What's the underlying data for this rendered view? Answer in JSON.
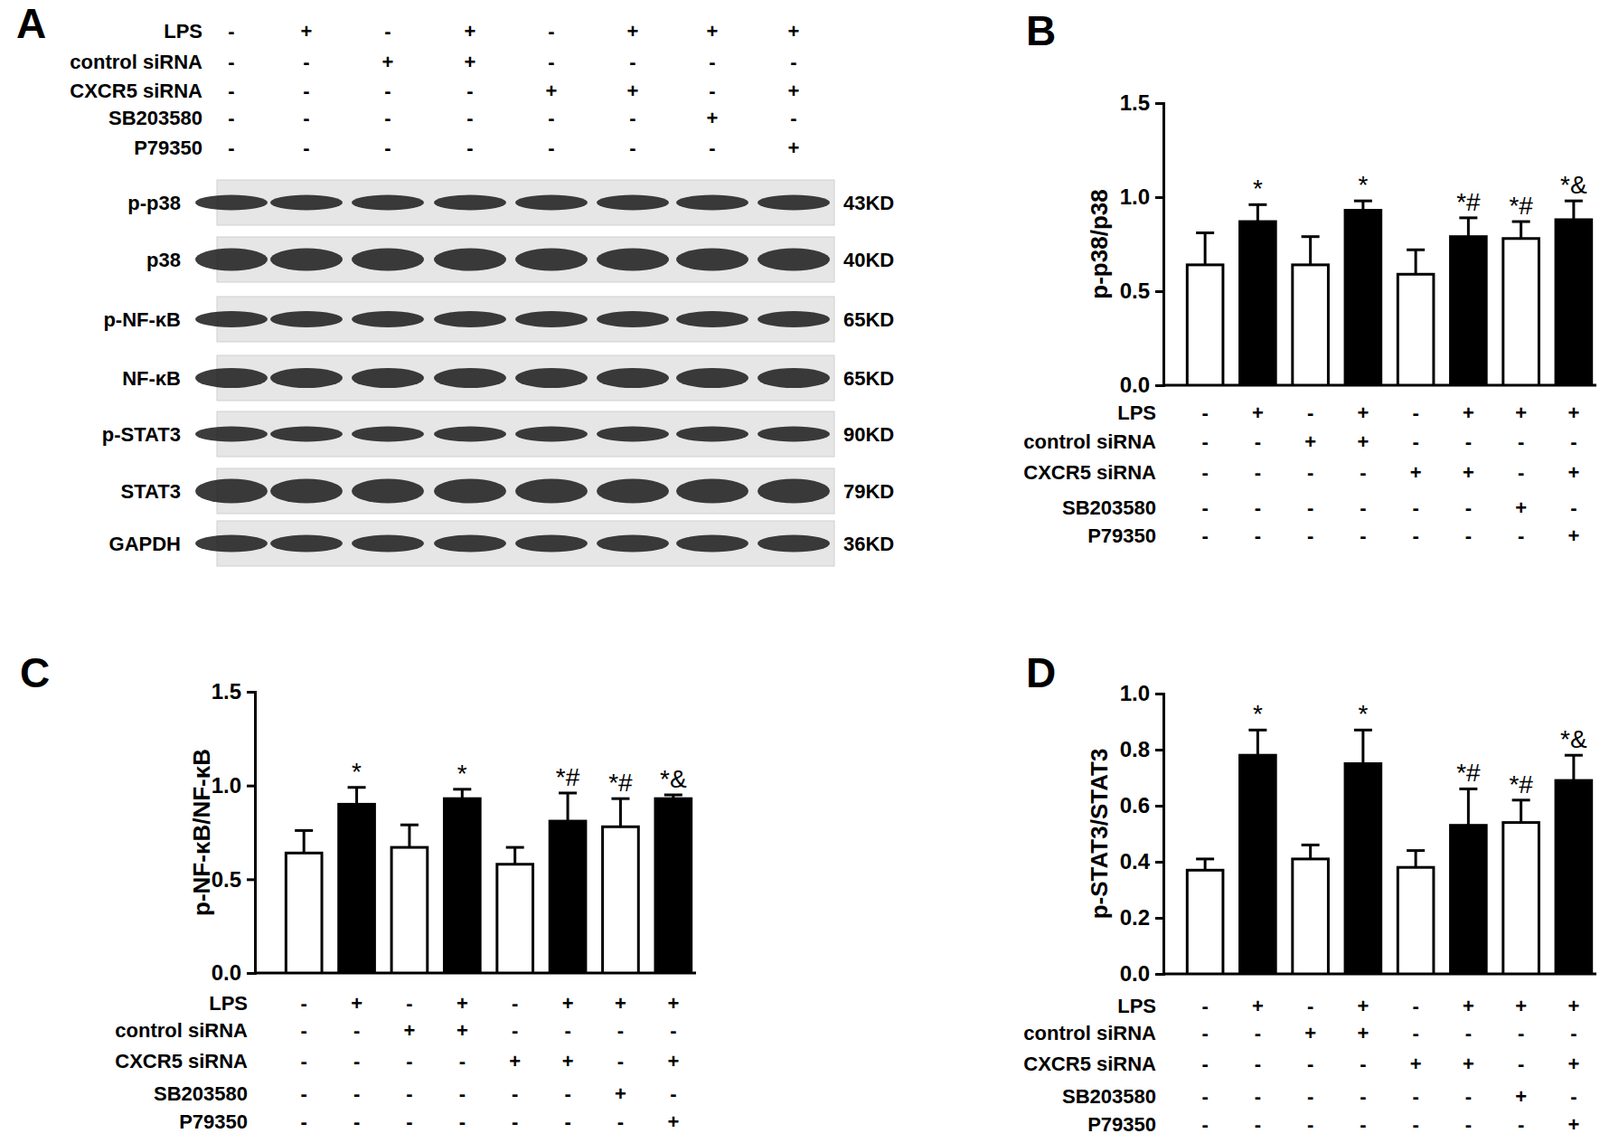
{
  "blot": {
    "title": "A",
    "treatments": [
      {
        "name": "LPS",
        "signs": [
          "-",
          "+",
          "-",
          "+",
          "-",
          "+",
          "+",
          "+"
        ]
      },
      {
        "name": "control siRNA",
        "signs": [
          "-",
          "-",
          "+",
          "+",
          "-",
          "-",
          "-",
          "-"
        ]
      },
      {
        "name": "CXCR5 siRNA",
        "signs": [
          "-",
          "-",
          "-",
          "-",
          "+",
          "+",
          "-",
          "+"
        ]
      },
      {
        "name": "SB203580",
        "signs": [
          "-",
          "-",
          "-",
          "-",
          "-",
          "-",
          "+",
          "-"
        ]
      },
      {
        "name": "P79350",
        "signs": [
          "-",
          "-",
          "-",
          "-",
          "-",
          "-",
          "-",
          "+"
        ]
      }
    ],
    "rows": [
      {
        "label": "p-p38",
        "size": "43KD"
      },
      {
        "label": "p38",
        "size": "40KD"
      },
      {
        "label": "p-NF-κB",
        "size": "65KD"
      },
      {
        "label": "NF-κB",
        "size": "65KD"
      },
      {
        "label": "p-STAT3",
        "size": "90KD"
      },
      {
        "label": "STAT3",
        "size": "79KD"
      },
      {
        "label": "GAPDH",
        "size": "36KD"
      }
    ]
  },
  "chart_data": [
    {
      "type": "bar",
      "title": "B",
      "y_label": "p-p38/p38",
      "treatments": [
        {
          "name": "LPS",
          "signs": [
            "-",
            "+",
            "-",
            "+",
            "-",
            "+",
            "+",
            "+"
          ]
        },
        {
          "name": "control siRNA",
          "signs": [
            "-",
            "-",
            "+",
            "+",
            "-",
            "-",
            "-",
            "-"
          ]
        },
        {
          "name": "CXCR5 siRNA",
          "signs": [
            "-",
            "-",
            "-",
            "-",
            "+",
            "+",
            "-",
            "+"
          ]
        },
        {
          "name": "SB203580",
          "signs": [
            "-",
            "-",
            "-",
            "-",
            "-",
            "-",
            "+",
            "-"
          ]
        },
        {
          "name": "P79350",
          "signs": [
            "-",
            "-",
            "-",
            "-",
            "-",
            "-",
            "-",
            "+"
          ]
        }
      ],
      "values": [
        0.64,
        0.87,
        0.64,
        0.93,
        0.59,
        0.79,
        0.78,
        0.88
      ],
      "errors": [
        0.17,
        0.09,
        0.15,
        0.05,
        0.13,
        0.1,
        0.09,
        0.1
      ],
      "colors": [
        "#ffffff",
        "#000000",
        "#ffffff",
        "#000000",
        "#ffffff",
        "#000000",
        "#ffffff",
        "#000000"
      ],
      "annotations": [
        null,
        "*",
        null,
        "*",
        null,
        "*#",
        "*#",
        "*&"
      ],
      "ylim": [
        0,
        1.5
      ],
      "yticks": [
        {
          "value": 0,
          "label": "0.0"
        },
        {
          "value": 0.5,
          "label": "0.5"
        },
        {
          "value": 1,
          "label": "1.0"
        },
        {
          "value": 1.5,
          "label": "1.5"
        }
      ]
    },
    {
      "type": "bar",
      "title": "C",
      "y_label": "p-NF-κB/NF-κB",
      "treatments": [
        {
          "name": "LPS",
          "signs": [
            "-",
            "+",
            "-",
            "+",
            "-",
            "+",
            "+",
            "+"
          ]
        },
        {
          "name": "control siRNA",
          "signs": [
            "-",
            "-",
            "+",
            "+",
            "-",
            "-",
            "-",
            "-"
          ]
        },
        {
          "name": "CXCR5 siRNA",
          "signs": [
            "-",
            "-",
            "-",
            "-",
            "+",
            "+",
            "-",
            "+"
          ]
        },
        {
          "name": "SB203580",
          "signs": [
            "-",
            "-",
            "-",
            "-",
            "-",
            "-",
            "+",
            "-"
          ]
        },
        {
          "name": "P79350",
          "signs": [
            "-",
            "-",
            "-",
            "-",
            "-",
            "-",
            "-",
            "+"
          ]
        }
      ],
      "values": [
        0.64,
        0.9,
        0.67,
        0.93,
        0.58,
        0.81,
        0.78,
        0.93
      ],
      "errors": [
        0.12,
        0.09,
        0.12,
        0.05,
        0.09,
        0.15,
        0.15,
        0.02
      ],
      "colors": [
        "#ffffff",
        "#000000",
        "#ffffff",
        "#000000",
        "#ffffff",
        "#000000",
        "#ffffff",
        "#000000"
      ],
      "annotations": [
        null,
        "*",
        null,
        "*",
        null,
        "*#",
        "*#",
        "*&"
      ],
      "ylim": [
        0,
        1.5
      ],
      "yticks": [
        {
          "value": 0,
          "label": "0.0"
        },
        {
          "value": 0.5,
          "label": "0.5"
        },
        {
          "value": 1,
          "label": "1.0"
        },
        {
          "value": 1.5,
          "label": "1.5"
        }
      ]
    },
    {
      "type": "bar",
      "title": "D",
      "y_label": "p-STAT3/STAT3",
      "treatments": [
        {
          "name": "LPS",
          "signs": [
            "-",
            "+",
            "-",
            "+",
            "-",
            "+",
            "+",
            "+"
          ]
        },
        {
          "name": "control siRNA",
          "signs": [
            "-",
            "-",
            "+",
            "+",
            "-",
            "-",
            "-",
            "-"
          ]
        },
        {
          "name": "CXCR5 siRNA",
          "signs": [
            "-",
            "-",
            "-",
            "-",
            "+",
            "+",
            "-",
            "+"
          ]
        },
        {
          "name": "SB203580",
          "signs": [
            "-",
            "-",
            "-",
            "-",
            "-",
            "-",
            "+",
            "-"
          ]
        },
        {
          "name": "P79350",
          "signs": [
            "-",
            "-",
            "-",
            "-",
            "-",
            "-",
            "-",
            "+"
          ]
        }
      ],
      "values": [
        0.37,
        0.78,
        0.41,
        0.75,
        0.38,
        0.53,
        0.54,
        0.69
      ],
      "errors": [
        0.04,
        0.09,
        0.05,
        0.12,
        0.06,
        0.13,
        0.08,
        0.09
      ],
      "colors": [
        "#ffffff",
        "#000000",
        "#ffffff",
        "#000000",
        "#ffffff",
        "#000000",
        "#ffffff",
        "#000000"
      ],
      "annotations": [
        null,
        "*",
        null,
        "*",
        null,
        "*#",
        "*#",
        "*&"
      ],
      "ylim": [
        0,
        1.0
      ],
      "yticks": [
        {
          "value": 0,
          "label": "0.0"
        },
        {
          "value": 0.2,
          "label": "0.2"
        },
        {
          "value": 0.4,
          "label": "0.4"
        },
        {
          "value": 0.6,
          "label": "0.6"
        },
        {
          "value": 0.8,
          "label": "0.8"
        },
        {
          "value": 1,
          "label": "1.0"
        }
      ]
    }
  ]
}
